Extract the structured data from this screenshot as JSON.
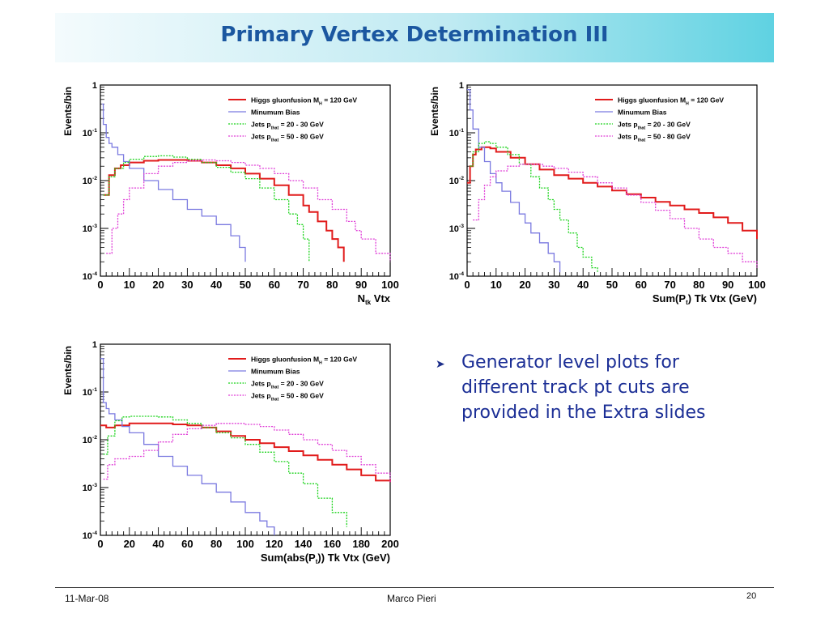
{
  "slide": {
    "title": "Primary Vertex Determination III",
    "bullet": "Generator level plots for different track pt cuts are provided in the Extra slides",
    "footer": {
      "date": "11-Mar-08",
      "author": "Marco Pieri",
      "page": "20"
    }
  },
  "chart_data": [
    {
      "type": "line",
      "ylabel": "Events/bin",
      "xlabel": "N_tk Vtx",
      "xlim": [
        0,
        100
      ],
      "ylim": [
        0.0001,
        1
      ],
      "yscale": "log",
      "xticks": [
        "0",
        "10",
        "20",
        "30",
        "40",
        "50",
        "60",
        "70",
        "80",
        "90",
        "100"
      ],
      "yticks": [
        "1",
        "10^-1",
        "10^-2",
        "10^-3",
        "10^-4"
      ],
      "legend": [
        "Higgs gluonfusion M_H = 120 GeV",
        "Minumum Bias",
        "Jets p_that = 20 - 30 GeV",
        "Jets p_that = 50 - 80 GeV"
      ],
      "legend_position": "top-right",
      "series": [
        {
          "name": "Higgs gluonfusion M_H = 120 GeV",
          "color": "#e11b1b",
          "style": "solid",
          "x": [
            1,
            3,
            5,
            7,
            10,
            15,
            20,
            25,
            30,
            35,
            40,
            45,
            50,
            55,
            60,
            65,
            70,
            72,
            75,
            78,
            80,
            82,
            84
          ],
          "y": [
            0.005,
            0.013,
            0.018,
            0.021,
            0.024,
            0.026,
            0.027,
            0.027,
            0.026,
            0.024,
            0.021,
            0.018,
            0.014,
            0.011,
            0.008,
            0.005,
            0.003,
            0.0022,
            0.0014,
            0.0009,
            0.0006,
            0.0004,
            0.0002
          ]
        },
        {
          "name": "Minumum Bias",
          "color": "#7b7ae0",
          "style": "solid",
          "x": [
            0.5,
            1,
            2,
            3,
            4,
            6,
            8,
            10,
            15,
            20,
            25,
            30,
            35,
            40,
            45,
            48,
            50
          ],
          "y": [
            0.4,
            0.15,
            0.08,
            0.06,
            0.05,
            0.035,
            0.025,
            0.018,
            0.01,
            0.0065,
            0.004,
            0.0025,
            0.0018,
            0.0012,
            0.0007,
            0.0004,
            0.0002
          ]
        },
        {
          "name": "Jets p_that = 20 - 30 GeV",
          "color": "#1fd41f",
          "style": "dotted",
          "x": [
            1,
            3,
            5,
            8,
            10,
            15,
            20,
            25,
            30,
            35,
            40,
            45,
            50,
            55,
            60,
            65,
            68,
            70,
            72
          ],
          "y": [
            0.005,
            0.012,
            0.018,
            0.024,
            0.028,
            0.032,
            0.033,
            0.031,
            0.028,
            0.024,
            0.019,
            0.015,
            0.011,
            0.007,
            0.004,
            0.002,
            0.0012,
            0.0006,
            0.0002
          ]
        },
        {
          "name": "Jets p_that = 50 - 80 GeV",
          "color": "#e040d8",
          "style": "dotted",
          "x": [
            2,
            4,
            6,
            8,
            10,
            15,
            20,
            25,
            30,
            35,
            40,
            45,
            50,
            55,
            60,
            65,
            70,
            75,
            80,
            85,
            88,
            90,
            95,
            100
          ],
          "y": [
            0.0003,
            0.001,
            0.002,
            0.004,
            0.007,
            0.014,
            0.02,
            0.024,
            0.026,
            0.027,
            0.026,
            0.024,
            0.021,
            0.018,
            0.014,
            0.01,
            0.007,
            0.004,
            0.0025,
            0.0014,
            0.0009,
            0.0006,
            0.0003,
            0.0002
          ]
        }
      ]
    },
    {
      "type": "line",
      "ylabel": "Events/bin",
      "xlabel": "Sum(P_t) Tk Vtx (GeV)",
      "xlim": [
        0,
        100
      ],
      "ylim": [
        0.0001,
        1
      ],
      "yscale": "log",
      "xticks": [
        "0",
        "10",
        "20",
        "30",
        "40",
        "50",
        "60",
        "70",
        "80",
        "90",
        "100"
      ],
      "yticks": [
        "1",
        "10^-1",
        "10^-2",
        "10^-3",
        "10^-4"
      ],
      "legend": [
        "Higgs gluonfusion M_H = 120 GeV",
        "Minumum Bias",
        "Jets p_that = 20 - 30 GeV",
        "Jets p_that = 50 - 80 GeV"
      ],
      "legend_position": "top-right",
      "series": [
        {
          "name": "Higgs gluonfusion M_H = 120 GeV",
          "color": "#e11b1b",
          "style": "solid",
          "x": [
            0,
            1,
            2,
            3,
            5,
            8,
            10,
            15,
            20,
            25,
            30,
            35,
            40,
            45,
            50,
            55,
            60,
            65,
            70,
            75,
            80,
            85,
            90,
            95,
            100
          ],
          "y": [
            0.009,
            0.02,
            0.035,
            0.045,
            0.05,
            0.047,
            0.04,
            0.03,
            0.022,
            0.017,
            0.013,
            0.011,
            0.009,
            0.0075,
            0.0062,
            0.0052,
            0.0044,
            0.0036,
            0.003,
            0.0025,
            0.0021,
            0.0017,
            0.0013,
            0.0009,
            0.0006
          ]
        },
        {
          "name": "Minumum Bias",
          "color": "#7b7ae0",
          "style": "solid",
          "x": [
            0,
            1,
            2,
            4,
            6,
            8,
            10,
            12,
            15,
            18,
            20,
            22,
            25,
            28,
            30,
            32
          ],
          "y": [
            0.8,
            0.3,
            0.12,
            0.05,
            0.025,
            0.014,
            0.009,
            0.006,
            0.0035,
            0.002,
            0.0013,
            0.0008,
            0.0005,
            0.0003,
            0.0002,
            0.00012
          ]
        },
        {
          "name": "Jets p_that = 20 - 30 GeV",
          "color": "#1fd41f",
          "style": "dotted",
          "x": [
            1,
            2,
            4,
            6,
            8,
            10,
            14,
            18,
            22,
            25,
            28,
            30,
            32,
            35,
            38,
            40,
            43,
            45
          ],
          "y": [
            0.02,
            0.04,
            0.06,
            0.065,
            0.06,
            0.05,
            0.035,
            0.022,
            0.012,
            0.007,
            0.004,
            0.0025,
            0.0015,
            0.0008,
            0.0004,
            0.00025,
            0.00015,
            0.00012
          ]
        },
        {
          "name": "Jets p_that = 50 - 80 GeV",
          "color": "#e040d8",
          "style": "dotted",
          "x": [
            2,
            4,
            6,
            8,
            10,
            14,
            18,
            22,
            26,
            30,
            35,
            40,
            45,
            50,
            55,
            60,
            65,
            70,
            75,
            80,
            85,
            90,
            95,
            100
          ],
          "y": [
            0.0015,
            0.004,
            0.008,
            0.012,
            0.016,
            0.02,
            0.022,
            0.022,
            0.02,
            0.018,
            0.015,
            0.012,
            0.009,
            0.007,
            0.005,
            0.0035,
            0.0024,
            0.0016,
            0.001,
            0.0006,
            0.0004,
            0.0003,
            0.0002,
            0.00015
          ]
        }
      ]
    },
    {
      "type": "line",
      "ylabel": "Events/bin",
      "xlabel": "Sum(abs(P_t)) Tk Vtx (GeV)",
      "xlim": [
        0,
        200
      ],
      "ylim": [
        0.0001,
        1
      ],
      "yscale": "log",
      "xticks": [
        "0",
        "20",
        "40",
        "60",
        "80",
        "100",
        "120",
        "140",
        "160",
        "180",
        "200"
      ],
      "yticks": [
        "1",
        "10^-1",
        "10^-2",
        "10^-3",
        "10^-4"
      ],
      "legend": [
        "Higgs gluonfusion M_H = 120 GeV",
        "Minumum Bias",
        "Jets p_that = 20 - 30 GeV",
        "Jets p_that = 50 - 80 GeV"
      ],
      "legend_position": "top-right",
      "series": [
        {
          "name": "Higgs gluonfusion M_H = 120 GeV",
          "color": "#e11b1b",
          "style": "solid",
          "x": [
            0,
            4,
            10,
            20,
            30,
            40,
            50,
            60,
            70,
            80,
            90,
            100,
            110,
            120,
            130,
            140,
            150,
            160,
            170,
            180,
            190,
            200
          ],
          "y": [
            0.02,
            0.018,
            0.02,
            0.022,
            0.022,
            0.022,
            0.021,
            0.02,
            0.018,
            0.015,
            0.012,
            0.01,
            0.0085,
            0.007,
            0.0058,
            0.0047,
            0.0038,
            0.003,
            0.0024,
            0.0018,
            0.0014,
            0.0013
          ]
        },
        {
          "name": "Minumum Bias",
          "color": "#7b7ae0",
          "style": "solid",
          "x": [
            0,
            2,
            4,
            6,
            10,
            15,
            20,
            30,
            40,
            50,
            60,
            70,
            80,
            90,
            100,
            110,
            115,
            120
          ],
          "y": [
            0.5,
            0.06,
            0.045,
            0.035,
            0.026,
            0.019,
            0.014,
            0.008,
            0.0045,
            0.0028,
            0.0018,
            0.0012,
            0.0008,
            0.0005,
            0.0003,
            0.0002,
            0.00015,
            0.0001
          ]
        },
        {
          "name": "Jets p_that = 20 - 30 GeV",
          "color": "#1fd41f",
          "style": "dotted",
          "x": [
            2,
            5,
            10,
            15,
            20,
            30,
            40,
            50,
            60,
            70,
            80,
            90,
            100,
            110,
            120,
            130,
            140,
            150,
            160,
            170
          ],
          "y": [
            0.005,
            0.012,
            0.025,
            0.03,
            0.031,
            0.031,
            0.03,
            0.026,
            0.022,
            0.018,
            0.014,
            0.011,
            0.008,
            0.0055,
            0.0035,
            0.002,
            0.0012,
            0.0006,
            0.0003,
            0.00015
          ]
        },
        {
          "name": "Jets p_that = 50 - 80 GeV",
          "color": "#e040d8",
          "style": "dotted",
          "x": [
            2,
            5,
            10,
            20,
            30,
            40,
            50,
            60,
            70,
            80,
            90,
            100,
            110,
            120,
            130,
            140,
            150,
            160,
            170,
            180,
            190,
            200
          ],
          "y": [
            0.0015,
            0.003,
            0.004,
            0.0045,
            0.006,
            0.009,
            0.013,
            0.017,
            0.02,
            0.022,
            0.022,
            0.021,
            0.019,
            0.016,
            0.013,
            0.01,
            0.008,
            0.006,
            0.0045,
            0.003,
            0.002,
            0.0013
          ]
        }
      ]
    }
  ]
}
